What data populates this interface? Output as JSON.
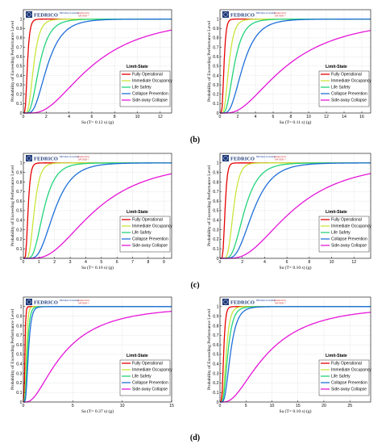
{
  "figure": {
    "panel_letters": [
      "(b)",
      "(c)",
      "(d)"
    ]
  },
  "logo": {
    "name": "FEDRICO",
    "badge": "BIM Atlas Consulting",
    "produced_line1": "Produced by",
    "produced_line2": "SPOTER ©"
  },
  "colors": {
    "fully_operational": "#e60000",
    "immediate_occupancy": "#c8e63c",
    "life_safety": "#22d47a",
    "collapse_prevention": "#1e6fd9",
    "side_sway_collapse": "#e616d8"
  },
  "chart_data": [
    {
      "type": "line",
      "ylabel": "Probability of Exceeding Performance Level",
      "xlabel": "Sa (T= 0.12 s) (g)",
      "xlim": [
        0,
        13
      ],
      "ylim": [
        0,
        1.1
      ],
      "xticks": [
        0,
        2,
        4,
        6,
        8,
        10,
        12
      ],
      "yticks": [
        0,
        0.1,
        0.2,
        0.3,
        0.4,
        0.5,
        0.6,
        0.7,
        0.8,
        0.9,
        1
      ],
      "grid": true,
      "legend_title": "Limit-State",
      "legend_position": "lower-right",
      "series": [
        {
          "name": "Fully Operational",
          "median": 0.35,
          "beta": 0.45
        },
        {
          "name": "Immediate Occupancy",
          "median": 0.9,
          "beta": 0.45
        },
        {
          "name": "Life Safety",
          "median": 1.4,
          "beta": 0.5
        },
        {
          "name": "Collapse Prevention",
          "median": 2.1,
          "beta": 0.5
        },
        {
          "name": "Side-sway Collapse",
          "median": 6.0,
          "beta": 0.65
        }
      ]
    },
    {
      "type": "line",
      "ylabel": "Probability of Exceeding Performance Level",
      "xlabel": "Sa (T= 0.11 s) (g)",
      "xlim": [
        0,
        17
      ],
      "ylim": [
        0,
        1.1
      ],
      "xticks": [
        0,
        2,
        4,
        6,
        8,
        10,
        12,
        14,
        16
      ],
      "yticks": [
        0,
        0.1,
        0.2,
        0.3,
        0.4,
        0.5,
        0.6,
        0.7,
        0.8,
        0.9,
        1
      ],
      "grid": true,
      "legend_title": "Limit-State",
      "legend_position": "lower-right",
      "series": [
        {
          "name": "Fully Operational",
          "median": 0.45,
          "beta": 0.4
        },
        {
          "name": "Immediate Occupancy",
          "median": 1.0,
          "beta": 0.45
        },
        {
          "name": "Life Safety",
          "median": 1.6,
          "beta": 0.5
        },
        {
          "name": "Collapse Prevention",
          "median": 2.6,
          "beta": 0.5
        },
        {
          "name": "Side-sway Collapse",
          "median": 7.5,
          "beta": 0.7
        }
      ]
    },
    {
      "type": "line",
      "ylabel": "Probability of Exceeding Performance Level",
      "xlabel": "Sa (T= 0.16 s) (g)",
      "xlim": [
        0,
        9.5
      ],
      "ylim": [
        0,
        1.1
      ],
      "xticks": [
        0,
        1,
        2,
        3,
        4,
        5,
        6,
        7,
        8,
        9
      ],
      "yticks": [
        0,
        0.1,
        0.2,
        0.3,
        0.4,
        0.5,
        0.6,
        0.7,
        0.8,
        0.9,
        1
      ],
      "grid": true,
      "legend_title": "Limit-State",
      "legend_position": "lower-right",
      "series": [
        {
          "name": "Fully Operational",
          "median": 0.3,
          "beta": 0.4
        },
        {
          "name": "Immediate Occupancy",
          "median": 0.7,
          "beta": 0.4
        },
        {
          "name": "Life Safety",
          "median": 1.3,
          "beta": 0.45
        },
        {
          "name": "Collapse Prevention",
          "median": 2.0,
          "beta": 0.45
        },
        {
          "name": "Side-sway Collapse",
          "median": 4.6,
          "beta": 0.6
        }
      ]
    },
    {
      "type": "line",
      "ylabel": "Probability of Exceeding Performance Level",
      "xlabel": "Sa (T= 0.10 s) (g)",
      "xlim": [
        0,
        13.5
      ],
      "ylim": [
        0,
        1.1
      ],
      "xticks": [
        0,
        2,
        4,
        6,
        8,
        10,
        12
      ],
      "yticks": [
        0,
        0.1,
        0.2,
        0.3,
        0.4,
        0.5,
        0.6,
        0.7,
        0.8,
        0.9,
        1
      ],
      "grid": true,
      "legend_title": "Limit-State",
      "legend_position": "lower-right",
      "series": [
        {
          "name": "Fully Operational",
          "median": 0.45,
          "beta": 0.35
        },
        {
          "name": "Immediate Occupancy",
          "median": 1.2,
          "beta": 0.35
        },
        {
          "name": "Life Safety",
          "median": 2.2,
          "beta": 0.45
        },
        {
          "name": "Collapse Prevention",
          "median": 3.0,
          "beta": 0.45
        },
        {
          "name": "Side-sway Collapse",
          "median": 6.5,
          "beta": 0.6
        }
      ]
    },
    {
      "type": "line",
      "ylabel": "Probability of Exceeding Performance Level",
      "xlabel": "Sa (T= 0.37 s) (g)",
      "xlim": [
        0,
        15
      ],
      "ylim": [
        0,
        1.1
      ],
      "xticks": [
        0,
        5,
        10,
        15
      ],
      "yticks": [
        0,
        0.1,
        0.2,
        0.3,
        0.4,
        0.5,
        0.6,
        0.7,
        0.8,
        0.9,
        1
      ],
      "grid": true,
      "legend_title": "Limit-State",
      "legend_position": "lower-right",
      "series": [
        {
          "name": "Fully Operational",
          "median": 0.15,
          "beta": 0.4
        },
        {
          "name": "Immediate Occupancy",
          "median": 0.3,
          "beta": 0.4
        },
        {
          "name": "Life Safety",
          "median": 0.4,
          "beta": 0.45
        },
        {
          "name": "Collapse Prevention",
          "median": 0.5,
          "beta": 0.45
        },
        {
          "name": "Side-sway Collapse",
          "median": 4.0,
          "beta": 0.8
        }
      ]
    },
    {
      "type": "line",
      "ylabel": "Probability of Exceeding Performance Level",
      "xlabel": "Sa (T= 0.10 s) (g)",
      "xlim": [
        0,
        29
      ],
      "ylim": [
        0,
        1.1
      ],
      "xticks": [
        0,
        5,
        10,
        15,
        20,
        25
      ],
      "yticks": [
        0,
        0.1,
        0.2,
        0.3,
        0.4,
        0.5,
        0.6,
        0.7,
        0.8,
        0.9,
        1
      ],
      "grid": true,
      "legend_title": "Limit-State",
      "legend_position": "lower-right",
      "series": [
        {
          "name": "Fully Operational",
          "median": 0.7,
          "beta": 0.4
        },
        {
          "name": "Immediate Occupancy",
          "median": 1.2,
          "beta": 0.45
        },
        {
          "name": "Life Safety",
          "median": 1.5,
          "beta": 0.5
        },
        {
          "name": "Collapse Prevention",
          "median": 2.0,
          "beta": 0.5
        },
        {
          "name": "Side-sway Collapse",
          "median": 9.0,
          "beta": 0.75
        }
      ]
    }
  ]
}
